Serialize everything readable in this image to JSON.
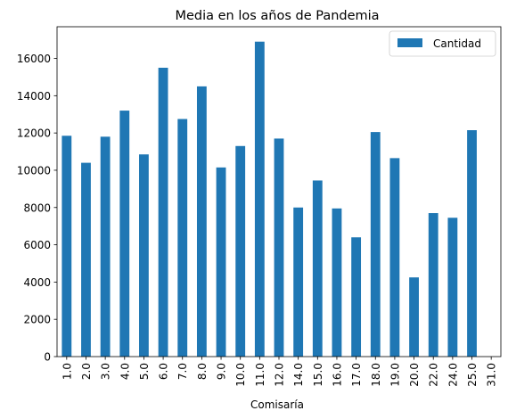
{
  "chart_data": {
    "type": "bar",
    "title": "Media en los años de Pandemia",
    "xlabel": "Comisaría",
    "ylabel": "",
    "categories": [
      "1.0",
      "2.0",
      "3.0",
      "4.0",
      "5.0",
      "6.0",
      "7.0",
      "8.0",
      "9.0",
      "10.0",
      "11.0",
      "12.0",
      "14.0",
      "15.0",
      "16.0",
      "17.0",
      "18.0",
      "19.0",
      "20.0",
      "22.0",
      "24.0",
      "25.0",
      "31.0"
    ],
    "series": [
      {
        "name": "Cantidad",
        "color": "#1f77b4",
        "values": [
          11850,
          10400,
          11800,
          13200,
          10850,
          15500,
          12750,
          14500,
          10150,
          11300,
          16900,
          11700,
          8000,
          9450,
          7950,
          6400,
          12050,
          10650,
          4250,
          7700,
          7450,
          12150,
          0
        ]
      }
    ],
    "yticks": [
      0,
      2000,
      4000,
      6000,
      8000,
      10000,
      12000,
      14000,
      16000
    ],
    "ylim": [
      0,
      17700
    ],
    "grid": false,
    "legend_position": "top-right"
  }
}
